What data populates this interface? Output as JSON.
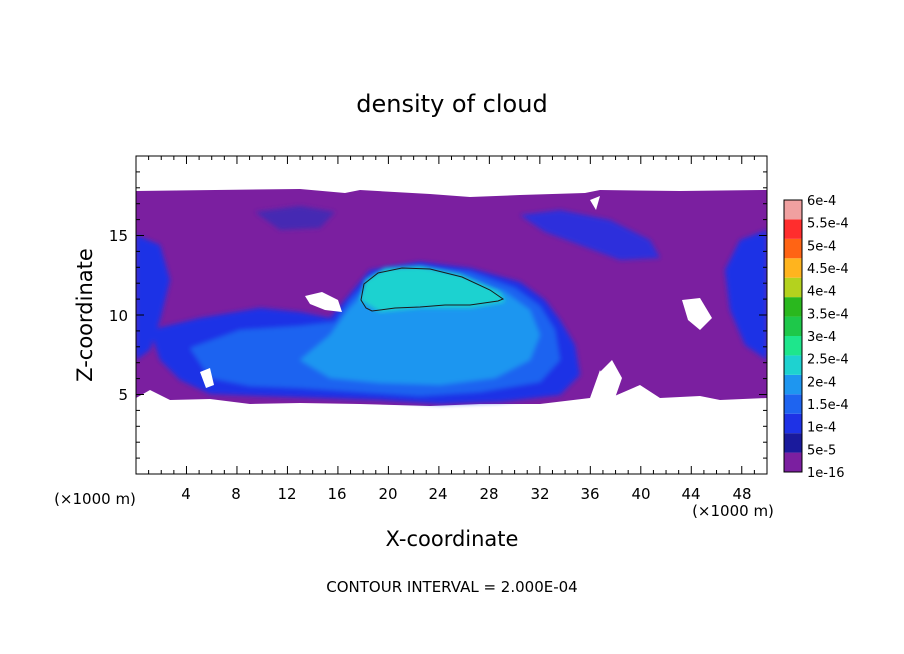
{
  "chart_data": {
    "type": "heatmap",
    "title": "density of cloud",
    "xlabel": "X-coordinate",
    "ylabel": "Z-coordinate",
    "x_unit_left": "(×1000 m)",
    "x_unit_right": "(×1000 m)",
    "footer": "CONTOUR INTERVAL = 2.000E-04",
    "x_ticks": [
      "4",
      "8",
      "12",
      "16",
      "20",
      "24",
      "28",
      "32",
      "36",
      "40",
      "44",
      "48"
    ],
    "y_ticks": [
      "5",
      "10",
      "15"
    ],
    "xlim": [
      0,
      50
    ],
    "ylim": [
      0,
      20
    ],
    "colorbar": {
      "labels": [
        "1e-16",
        "5e-5",
        "1e-4",
        "1.5e-4",
        "2e-4",
        "2.5e-4",
        "3e-4",
        "3.5e-4",
        "4e-4",
        "4.5e-4",
        "5e-4",
        "5.5e-4",
        "6e-4"
      ],
      "colors": [
        "#7b1fa0",
        "#1a1a9c",
        "#1e32e6",
        "#1e64f0",
        "#1e96f0",
        "#1ed2d0",
        "#1ee68c",
        "#1ec84a",
        "#2ab81e",
        "#b4d21e",
        "#ffb41e",
        "#ff6414",
        "#ff2d2d",
        "#f0a0a0"
      ]
    },
    "contour_interval": 0.0002,
    "cloud_region": {
      "x_range": [
        0,
        50
      ],
      "z_range": [
        4.5,
        17.8
      ]
    },
    "max_core": {
      "x_range": [
        18,
        29
      ],
      "z_range": [
        10.3,
        12.9
      ],
      "level": "2e-4"
    }
  }
}
